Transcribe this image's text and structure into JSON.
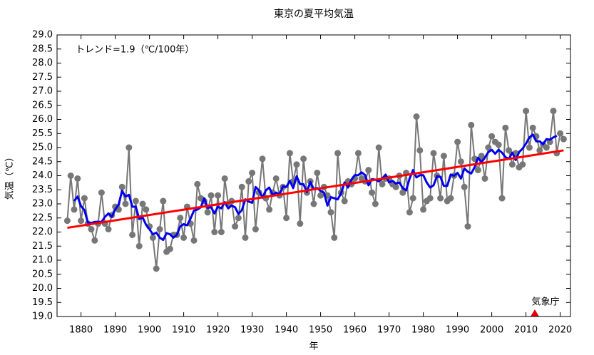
{
  "chart_data": {
    "type": "line",
    "title": "東京の夏平均気温",
    "xlabel": "年",
    "ylabel": "気温（℃）",
    "annotation": "トレンド=1.9（℃/100年）",
    "source": "気象庁",
    "xlim": [
      1873,
      2023
    ],
    "xticks": [
      1880,
      1890,
      1900,
      1910,
      1920,
      1930,
      1940,
      1950,
      1960,
      1970,
      1980,
      1990,
      2000,
      2010,
      2020
    ],
    "ylim": [
      19,
      29
    ],
    "yticks": [
      {
        "value": 19,
        "label": "19.0"
      },
      19.5,
      {
        "value": 20,
        "label": "20.0"
      },
      20.5,
      {
        "value": 21,
        "label": "21.0"
      },
      21.5,
      {
        "value": 22,
        "label": "22.0"
      },
      22.5,
      {
        "value": 23,
        "label": "23.0"
      },
      23.5,
      {
        "value": 24,
        "label": "24.0"
      },
      24.5,
      {
        "value": 25,
        "label": "25.0"
      },
      25.5,
      {
        "value": 26,
        "label": "26.0"
      },
      26.5,
      {
        "value": 27,
        "label": "27.0"
      },
      27.5,
      {
        "value": 28,
        "label": "28.0"
      },
      28.5,
      {
        "value": 29,
        "label": "29.0"
      }
    ],
    "series": [
      {
        "color": "#777777",
        "markers": true,
        "width": 2,
        "x": [
          1876,
          1877,
          1878,
          1879,
          1880,
          1881,
          1882,
          1883,
          1884,
          1885,
          1886,
          1887,
          1888,
          1889,
          1890,
          1891,
          1892,
          1893,
          1894,
          1895,
          1896,
          1897,
          1898,
          1899,
          1900,
          1901,
          1902,
          1903,
          1904,
          1905,
          1906,
          1907,
          1908,
          1909,
          1910,
          1911,
          1912,
          1913,
          1914,
          1915,
          1916,
          1917,
          1918,
          1919,
          1920,
          1921,
          1922,
          1923,
          1924,
          1925,
          1926,
          1927,
          1928,
          1929,
          1930,
          1931,
          1932,
          1933,
          1934,
          1935,
          1936,
          1937,
          1938,
          1939,
          1940,
          1941,
          1942,
          1943,
          1944,
          1945,
          1946,
          1947,
          1948,
          1949,
          1950,
          1951,
          1952,
          1953,
          1954,
          1955,
          1956,
          1957,
          1958,
          1959,
          1960,
          1961,
          1962,
          1963,
          1964,
          1965,
          1966,
          1967,
          1968,
          1969,
          1970,
          1971,
          1972,
          1973,
          1974,
          1975,
          1976,
          1977,
          1978,
          1979,
          1980,
          1981,
          1982,
          1983,
          1984,
          1985,
          1986,
          1987,
          1988,
          1989,
          1990,
          1991,
          1992,
          1993,
          1994,
          1995,
          1996,
          1997,
          1998,
          1999,
          2000,
          2001,
          2002,
          2003,
          2004,
          2005,
          2006,
          2007,
          2008,
          2009,
          2010,
          2011,
          2012,
          2013,
          2014,
          2015,
          2016,
          2017,
          2018,
          2019,
          2020,
          2021
        ],
        "values": [
          22.4,
          24.0,
          22.8,
          23.9,
          22.4,
          23.2,
          22.3,
          22.1,
          21.7,
          22.3,
          23.4,
          22.3,
          22.1,
          22.6,
          22.9,
          22.8,
          23.6,
          23.0,
          25.0,
          21.9,
          23.1,
          21.5,
          23.0,
          22.8,
          22.2,
          21.8,
          20.7,
          22.1,
          23.1,
          21.3,
          21.4,
          21.9,
          21.9,
          22.5,
          21.8,
          22.9,
          22.3,
          21.7,
          23.7,
          23.2,
          23.1,
          22.7,
          23.3,
          22.0,
          23.3,
          22.0,
          23.9,
          23.0,
          23.1,
          22.2,
          22.5,
          23.6,
          21.8,
          23.8,
          24.1,
          22.1,
          23.4,
          24.6,
          23.2,
          22.8,
          23.4,
          23.9,
          23.3,
          23.6,
          22.5,
          24.8,
          23.8,
          24.4,
          22.3,
          24.6,
          23.4,
          23.8,
          23.0,
          24.1,
          23.3,
          23.6,
          23.3,
          22.7,
          21.8,
          24.8,
          23.4,
          23.1,
          23.8,
          23.7,
          23.9,
          24.8,
          23.9,
          23.8,
          24.2,
          23.4,
          23.0,
          25.0,
          23.7,
          23.9,
          23.9,
          23.7,
          23.6,
          24.0,
          23.4,
          24.1,
          22.7,
          23.2,
          26.1,
          24.9,
          22.8,
          23.1,
          23.2,
          24.8,
          24.0,
          23.2,
          24.7,
          23.1,
          23.2,
          24.0,
          25.2,
          24.5,
          23.6,
          22.2,
          25.8,
          24.6,
          24.2,
          24.7,
          23.9,
          25.0,
          25.4,
          25.2,
          25.1,
          23.2,
          25.7,
          24.9,
          24.4,
          24.8,
          24.3,
          24.4,
          26.3,
          25.0,
          25.7,
          25.4,
          24.9,
          25.1,
          25.0,
          25.2,
          26.3,
          24.8,
          25.5,
          25.3
        ]
      },
      {
        "color": "#0000ee",
        "markers": false,
        "width": 3,
        "x": [
          1878,
          1879,
          1880,
          1881,
          1882,
          1883,
          1884,
          1885,
          1886,
          1887,
          1888,
          1889,
          1890,
          1891,
          1892,
          1893,
          1894,
          1895,
          1896,
          1897,
          1898,
          1899,
          1900,
          1901,
          1902,
          1903,
          1904,
          1905,
          1906,
          1907,
          1908,
          1909,
          1910,
          1911,
          1912,
          1913,
          1914,
          1915,
          1916,
          1917,
          1918,
          1919,
          1920,
          1921,
          1922,
          1923,
          1924,
          1925,
          1926,
          1927,
          1928,
          1929,
          1930,
          1931,
          1932,
          1933,
          1934,
          1935,
          1936,
          1937,
          1938,
          1939,
          1940,
          1941,
          1942,
          1943,
          1944,
          1945,
          1946,
          1947,
          1948,
          1949,
          1950,
          1951,
          1952,
          1953,
          1954,
          1955,
          1956,
          1957,
          1958,
          1959,
          1960,
          1961,
          1962,
          1963,
          1964,
          1965,
          1966,
          1967,
          1968,
          1969,
          1970,
          1971,
          1972,
          1973,
          1974,
          1975,
          1976,
          1977,
          1978,
          1979,
          1980,
          1981,
          1982,
          1983,
          1984,
          1985,
          1986,
          1987,
          1988,
          1989,
          1990,
          1991,
          1992,
          1993,
          1994,
          1995,
          1996,
          1997,
          1998,
          1999,
          2000,
          2001,
          2002,
          2003,
          2004,
          2005,
          2006,
          2007,
          2008,
          2009,
          2010,
          2011,
          2012,
          2013,
          2014,
          2015,
          2016,
          2017,
          2018,
          2019
        ],
        "values": [
          23.1,
          23.26,
          22.92,
          22.78,
          22.34,
          22.32,
          22.36,
          22.36,
          22.36,
          22.54,
          22.66,
          22.54,
          22.8,
          22.98,
          23.46,
          23.26,
          23.32,
          22.9,
          22.9,
          22.46,
          22.52,
          22.26,
          22.1,
          21.92,
          21.98,
          21.8,
          21.72,
          21.96,
          21.92,
          21.8,
          21.9,
          22.2,
          22.28,
          22.24,
          22.48,
          22.76,
          22.8,
          22.88,
          23.2,
          22.86,
          22.88,
          22.66,
          22.9,
          22.84,
          23.06,
          22.84,
          22.94,
          22.88,
          22.64,
          22.78,
          23.16,
          23.08,
          23.04,
          23.6,
          23.48,
          23.22,
          23.48,
          23.58,
          23.32,
          23.4,
          23.34,
          23.62,
          23.6,
          23.82,
          23.56,
          23.98,
          23.7,
          23.7,
          23.42,
          23.78,
          23.52,
          23.56,
          23.46,
          23.4,
          22.94,
          23.24,
          23.2,
          23.16,
          23.38,
          23.76,
          23.58,
          23.86,
          24.02,
          24.02,
          24.12,
          24.02,
          23.66,
          23.88,
          23.86,
          23.8,
          23.9,
          24.04,
          23.76,
          23.82,
          23.72,
          23.76,
          23.56,
          23.48,
          23.9,
          24.2,
          23.94,
          24.02,
          24.02,
          23.76,
          23.58,
          23.66,
          23.98,
          23.96,
          23.64,
          23.64,
          24.04,
          24.0,
          24.1,
          23.9,
          24.26,
          24.14,
          24.08,
          24.3,
          24.64,
          24.48,
          24.64,
          24.84,
          24.92,
          24.78,
          24.92,
          24.82,
          24.66,
          24.6,
          24.82,
          24.56,
          24.84,
          24.96,
          25.14,
          25.36,
          25.46,
          25.22,
          25.22,
          25.12,
          25.3,
          25.28,
          25.36,
          25.42
        ]
      },
      {
        "color": "#ff0000",
        "markers": false,
        "width": 3,
        "x": [
          1876,
          2021
        ],
        "values": [
          22.15,
          24.9
        ]
      }
    ]
  }
}
